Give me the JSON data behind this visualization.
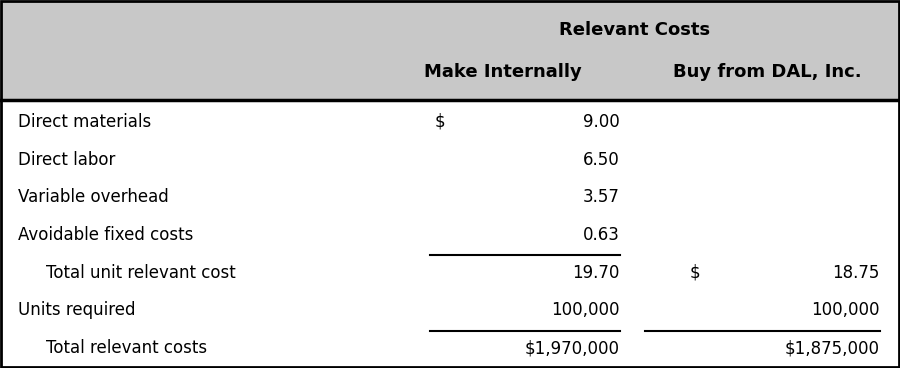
{
  "title": "Relevant Costs",
  "col_headers": [
    "Make Internally",
    "Buy from DAL, Inc."
  ],
  "rows": [
    {
      "label": "Direct materials",
      "make_dollar": "$",
      "make_num": "9.00",
      "buy_dollar": "",
      "buy_num": "",
      "indent": false,
      "underline_above_make": false,
      "underline_above_buy": false
    },
    {
      "label": "Direct labor",
      "make_dollar": "",
      "make_num": "6.50",
      "buy_dollar": "",
      "buy_num": "",
      "indent": false,
      "underline_above_make": false,
      "underline_above_buy": false
    },
    {
      "label": "Variable overhead",
      "make_dollar": "",
      "make_num": "3.57",
      "buy_dollar": "",
      "buy_num": "",
      "indent": false,
      "underline_above_make": false,
      "underline_above_buy": false
    },
    {
      "label": "Avoidable fixed costs",
      "make_dollar": "",
      "make_num": "0.63",
      "buy_dollar": "",
      "buy_num": "",
      "indent": false,
      "underline_above_make": false,
      "underline_above_buy": false
    },
    {
      "label": "Total unit relevant cost",
      "make_dollar": "",
      "make_num": "19.70",
      "buy_dollar": "$",
      "buy_num": "18.75",
      "indent": true,
      "underline_above_make": true,
      "underline_above_buy": false
    },
    {
      "label": "Units required",
      "make_dollar": "",
      "make_num": "100,000",
      "buy_dollar": "",
      "buy_num": "100,000",
      "indent": false,
      "underline_above_make": false,
      "underline_above_buy": false
    },
    {
      "label": "Total relevant costs",
      "make_dollar": "",
      "make_num": "$1,970,000",
      "buy_dollar": "",
      "buy_num": "$1,875,000",
      "indent": true,
      "underline_above_make": true,
      "underline_above_buy": true
    }
  ],
  "header_bg": "#c8c8c8",
  "body_bg": "#ffffff",
  "border_color": "#000000",
  "text_color": "#000000",
  "header_fontsize": 13,
  "body_fontsize": 12,
  "fig_width": 9.0,
  "fig_height": 3.68
}
